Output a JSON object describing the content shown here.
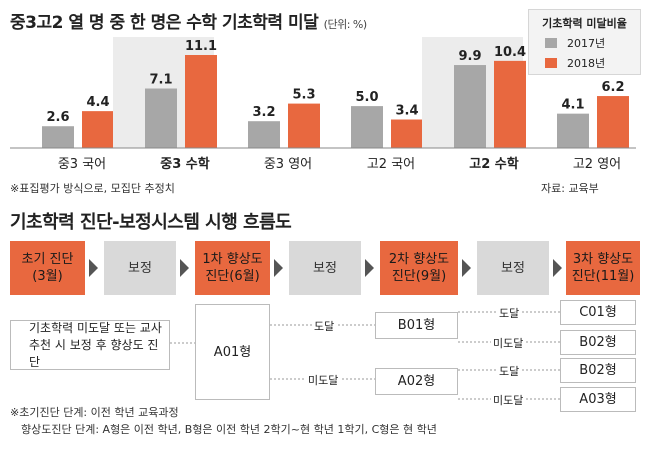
{
  "title": "중3고2 열 명 중 한 명은 수학 기초학력 미달",
  "unit": "(단위: %)",
  "legend": {
    "title": "기초학력 미달비율",
    "items": [
      "2017년",
      "2018년"
    ]
  },
  "colors": {
    "y2017": "#a7a7a7",
    "y2018": "#e8683f",
    "orange": "#e8683f",
    "gray": "#d9d9d9"
  },
  "chart_data": {
    "type": "bar",
    "categories": [
      "중3 국어",
      "중3 수학",
      "중3 영어",
      "고2 국어",
      "고2 수학",
      "고2 영어"
    ],
    "bold_categories": [
      "중3 수학",
      "고2 수학"
    ],
    "highlighted_categories": [
      "중3 수학",
      "고2 수학"
    ],
    "series": [
      {
        "name": "2017년",
        "values": [
          2.6,
          7.1,
          3.2,
          5.0,
          9.9,
          4.1
        ],
        "labels": [
          "2.6",
          "7.1",
          "3.2",
          "5.0",
          "9.9",
          "4.1"
        ]
      },
      {
        "name": "2018년",
        "values": [
          4.4,
          11.1,
          5.3,
          3.4,
          10.4,
          6.2
        ],
        "labels": [
          "4.4",
          "11.1",
          "5.3",
          "3.4",
          "10.4",
          "6.2"
        ]
      }
    ],
    "ylim": [
      0,
      12
    ]
  },
  "note": "※표집평가 방식으로, 모집단 추정치",
  "source": "자료: 교육부",
  "flow": {
    "title": "기초학력 진단-보정시스템 시행 흐름도",
    "steps": [
      "초기 진단\n(3월)",
      "보정",
      "1차 향상도\n진단(6월)",
      "보정",
      "2차 향상도\n진단(9월)",
      "보정",
      "3차 향상도\n진단(11월)"
    ],
    "left_note": "기초학력 미도달 또는 교사\n추천 시 보정 후 향상도 진단",
    "a01": "A01형",
    "b01": "B01형",
    "a02": "A02형",
    "c01": "C01형",
    "b02_top": "B02형",
    "b02_bottom": "B02형",
    "a03": "A03형",
    "reach": "도달",
    "not_reach": "미도달"
  },
  "footnotes": [
    "※초기진단 단계: 이전 학년 교육과정",
    "향상도진단 단계: A형은 이전 학년, B형은 이전 학년 2학기~현 학년 1학기, C형은 현 학년"
  ]
}
